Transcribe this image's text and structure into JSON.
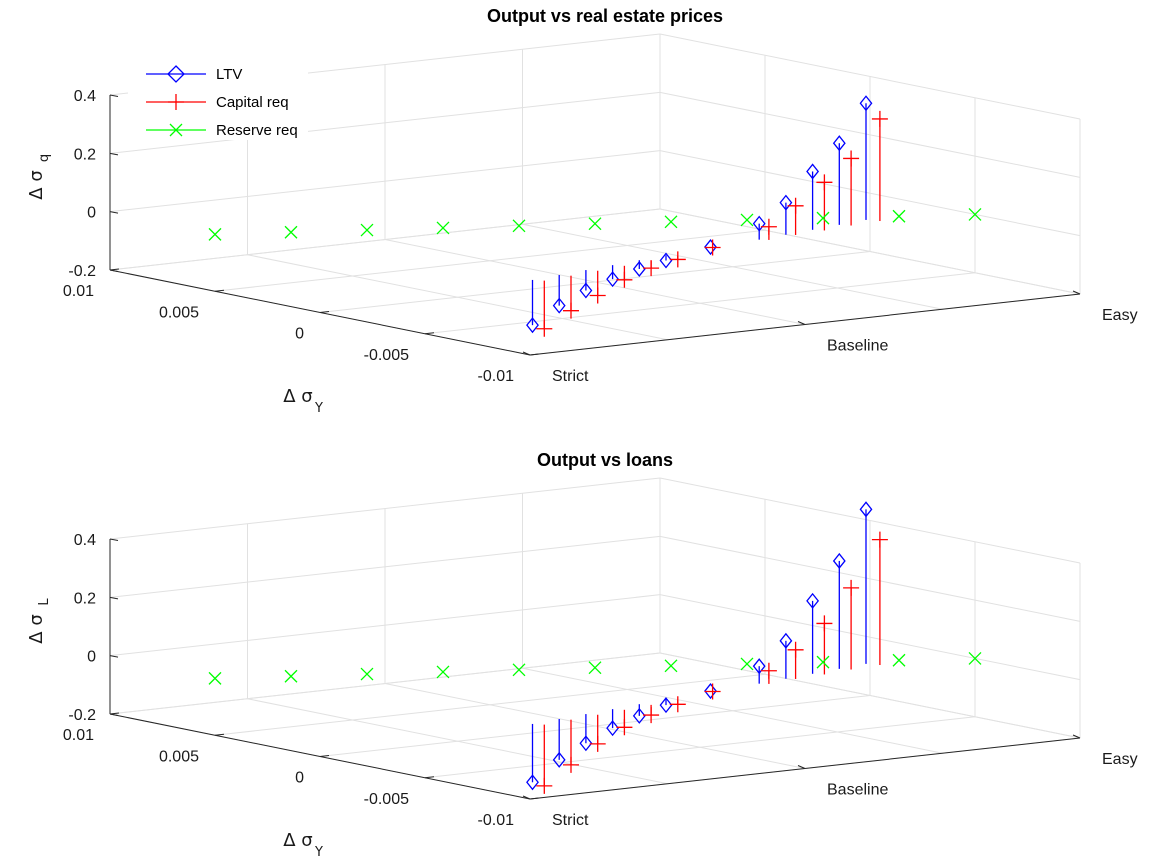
{
  "chart_data": [
    {
      "type": "scatter3d-stem",
      "title": "Output vs real estate prices",
      "xlabel": "",
      "ylabel": "Δ σ",
      "ylabel_sub": "Y",
      "zlabel": "Δ σ",
      "zlabel_sub": "q",
      "x_ticks": [
        "Strict",
        "Baseline",
        "Easy"
      ],
      "y_ticks": [
        "0.01",
        "0.005",
        "0",
        "-0.005",
        "-0.01"
      ],
      "z_ticks": [
        "0.4",
        "0.2",
        "0",
        "-0.2"
      ],
      "zlim": [
        -0.2,
        0.4
      ],
      "ylim": [
        -0.01,
        0.01
      ],
      "grid": true,
      "legend": "top-left",
      "legend_entries": [
        "LTV",
        "Capital req",
        "Reserve req"
      ],
      "series": [
        {
          "name": "LTV",
          "marker": "diamond",
          "color": "#0000ff",
          "x": [
            0.2,
            0.32,
            0.44,
            0.56,
            0.68,
            0.8,
            1.0,
            1.2,
            1.32,
            1.44,
            1.56,
            1.68
          ],
          "y": [
            -0.0075,
            -0.0072,
            -0.0069,
            -0.0066,
            -0.0063,
            -0.006,
            -0.0055,
            -0.0052,
            -0.0049,
            -0.0046,
            -0.0043,
            -0.004
          ],
          "z": [
            -0.155,
            -0.105,
            -0.07,
            -0.048,
            -0.03,
            -0.018,
            0.0,
            0.055,
            0.11,
            0.2,
            0.28,
            0.4
          ]
        },
        {
          "name": "Capital req",
          "marker": "plus",
          "color": "#ff0000",
          "x": [
            0.22,
            0.34,
            0.46,
            0.58,
            0.7,
            0.82,
            1.0,
            1.22,
            1.34,
            1.46,
            1.58,
            1.7
          ],
          "y": [
            -0.0078,
            -0.0075,
            -0.0072,
            -0.0069,
            -0.0066,
            -0.0063,
            -0.0056,
            -0.0054,
            -0.0051,
            -0.0049,
            -0.0046,
            -0.0044
          ],
          "z": [
            -0.165,
            -0.12,
            -0.085,
            -0.048,
            -0.025,
            -0.012,
            0.0,
            0.045,
            0.1,
            0.165,
            0.23,
            0.35
          ]
        },
        {
          "name": "Reserve req",
          "marker": "x",
          "color": "#00ff00",
          "x": [
            0.0,
            0.2,
            0.4,
            0.6,
            0.8,
            1.0,
            1.2,
            1.4,
            1.6,
            1.8,
            2.0
          ],
          "y": [
            0.005,
            0.004,
            0.003,
            0.002,
            0.001,
            0.0,
            -0.001,
            -0.002,
            -0.003,
            -0.004,
            -0.005
          ],
          "z": [
            -0.005,
            -0.004,
            -0.003,
            -0.002,
            -0.001,
            0.0,
            0.0,
            0.0,
            0.0,
            0.0,
            0.0
          ]
        }
      ]
    },
    {
      "type": "scatter3d-stem",
      "title": "Output vs loans",
      "xlabel": "",
      "ylabel": "Δ σ",
      "ylabel_sub": "Y",
      "zlabel": "Δ σ",
      "zlabel_sub": "L",
      "x_ticks": [
        "Strict",
        "Baseline",
        "Easy"
      ],
      "y_ticks": [
        "0.01",
        "0.005",
        "0",
        "-0.005",
        "-0.01"
      ],
      "z_ticks": [
        "0.4",
        "0.2",
        "0",
        "-0.2"
      ],
      "zlim": [
        -0.2,
        0.4
      ],
      "ylim": [
        -0.01,
        0.01
      ],
      "grid": true,
      "legend": "",
      "series": [
        {
          "name": "LTV",
          "marker": "diamond",
          "color": "#0000ff",
          "x": [
            0.2,
            0.32,
            0.44,
            0.56,
            0.68,
            0.8,
            1.0,
            1.2,
            1.32,
            1.44,
            1.56,
            1.68
          ],
          "y": [
            -0.0075,
            -0.0072,
            -0.0069,
            -0.0066,
            -0.0063,
            -0.006,
            -0.0055,
            -0.0052,
            -0.0049,
            -0.0046,
            -0.0043,
            -0.004
          ],
          "z": [
            -0.2,
            -0.14,
            -0.1,
            -0.065,
            -0.04,
            -0.02,
            0.0,
            0.06,
            0.13,
            0.25,
            0.37,
            0.53
          ]
        },
        {
          "name": "Capital req",
          "marker": "plus",
          "color": "#ff0000",
          "x": [
            0.22,
            0.34,
            0.46,
            0.58,
            0.7,
            0.82,
            1.0,
            1.22,
            1.34,
            1.46,
            1.58,
            1.7
          ],
          "y": [
            -0.0078,
            -0.0075,
            -0.0072,
            -0.0069,
            -0.0066,
            -0.0063,
            -0.0056,
            -0.0054,
            -0.0051,
            -0.0049,
            -0.0046,
            -0.0044
          ],
          "z": [
            -0.21,
            -0.155,
            -0.1,
            -0.06,
            -0.035,
            -0.015,
            0.0,
            0.045,
            0.1,
            0.175,
            0.28,
            0.43
          ]
        },
        {
          "name": "Reserve req",
          "marker": "x",
          "color": "#00ff00",
          "x": [
            0.0,
            0.2,
            0.4,
            0.6,
            0.8,
            1.0,
            1.2,
            1.4,
            1.6,
            1.8,
            2.0
          ],
          "y": [
            0.005,
            0.004,
            0.003,
            0.002,
            0.001,
            0.0,
            -0.001,
            -0.002,
            -0.003,
            -0.004,
            -0.005
          ],
          "z": [
            -0.005,
            -0.004,
            -0.003,
            -0.002,
            -0.001,
            0.0,
            0.0,
            0.0,
            0.0,
            0.0,
            0.0
          ]
        }
      ]
    }
  ]
}
